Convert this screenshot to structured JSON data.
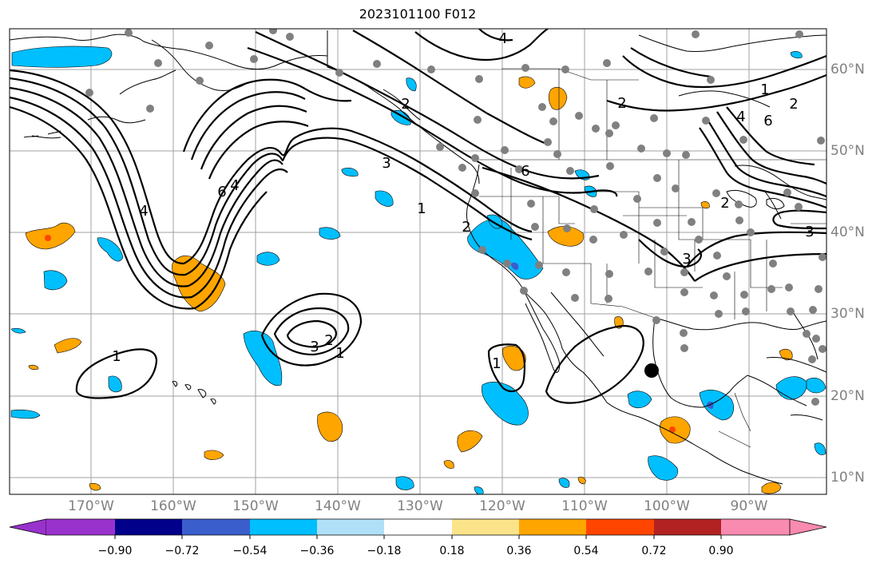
{
  "title": "2023101100 F012",
  "lat_labels": [
    "60°N",
    "50°N",
    "40°N",
    "30°N",
    "20°N",
    "10°N"
  ],
  "lon_labels": [
    "170°W",
    "160°W",
    "150°W",
    "140°W",
    "130°W",
    "120°W",
    "110°W",
    "100°W",
    "90°W"
  ],
  "colorbar": {
    "tick_labels": [
      "−0.90",
      "−0.72",
      "−0.54",
      "−0.36",
      "−0.18",
      "0.18",
      "0.36",
      "0.54",
      "0.72",
      "0.90"
    ],
    "colors": [
      "#9932cc",
      "#00008b",
      "#3a5fcd",
      "#00bfff",
      "#b0e0f8",
      "#ffffff",
      "#fbe38a",
      "#ffa500",
      "#ff4500",
      "#b22222",
      "#f98ab0"
    ],
    "extend": "both"
  },
  "contour_labels": [
    "4",
    "2",
    "6",
    "1",
    "2",
    "4",
    "6",
    "3",
    "1",
    "2",
    "3",
    "4",
    "1",
    "2",
    "3",
    "2",
    "1",
    "6",
    "4",
    "3",
    "2",
    "1"
  ],
  "colors": {
    "contour": "#000000",
    "coast": "#000000",
    "grid": "#a0a0a0",
    "station": "#808080",
    "marker": "#000000",
    "positive_fill": "#ffa500",
    "negative_fill": "#00bfff",
    "axis_label": "#808080"
  }
}
